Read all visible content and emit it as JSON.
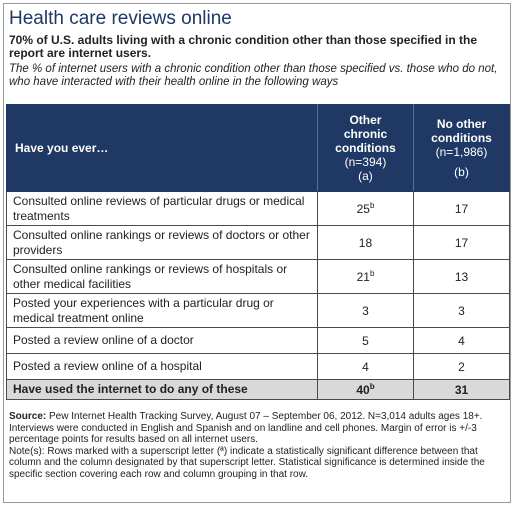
{
  "title": "Health care reviews online",
  "subtitle": "70% of U.S. adults living with a chronic condition other than those specified in the report are internet users.",
  "description": "The % of internet users with a chronic condition other than those specified vs. those who do not, who have interacted with their health online in the following ways",
  "table": {
    "header": {
      "question": "Have you ever…",
      "col_a": {
        "line1": "Other",
        "line2": "chronic",
        "line3": "conditions",
        "n": "(n=394)",
        "letter": "(a)"
      },
      "col_b": {
        "line1": "No other",
        "line2": "conditions",
        "n": "(n=1,986)",
        "letter": "(b)"
      }
    },
    "rows": [
      {
        "label": "Consulted online reviews of particular drugs or medical treatments",
        "a": "25",
        "a_sup": "b",
        "b": "17"
      },
      {
        "label": "Consulted online rankings or reviews of doctors or other providers",
        "a": "18",
        "a_sup": "",
        "b": "17"
      },
      {
        "label": "Consulted online rankings or reviews of hospitals or other medical facilities",
        "a": "21",
        "a_sup": "b",
        "b": "13"
      },
      {
        "label": "Posted your experiences with a particular drug or medical treatment online",
        "a": "3",
        "a_sup": "",
        "b": "3"
      },
      {
        "label": "Posted a review online of a doctor",
        "a": "5",
        "a_sup": "",
        "b": "4"
      },
      {
        "label": "Posted a review online of a hospital",
        "a": "4",
        "a_sup": "",
        "b": "2"
      }
    ],
    "total": {
      "label": "Have used the internet to do any of these",
      "a": "40",
      "a_sup": "b",
      "b": "31"
    }
  },
  "source": {
    "label": "Source:",
    "text1": "Pew Internet Health Tracking Survey, August 07 – September 06, 2012. N=3,014 adults ages 18+. Interviews were conducted in English and Spanish and on landline and cell phones. Margin of error is +/-3 percentage points for results based on all internet users.",
    "note_label": "Note(s):",
    "note_text": "Rows marked with a superscript letter (ª) indicate a statistically significant difference between that column and the column designated by that superscript letter. Statistical significance is determined inside the specific section covering each row and column grouping in that row."
  }
}
